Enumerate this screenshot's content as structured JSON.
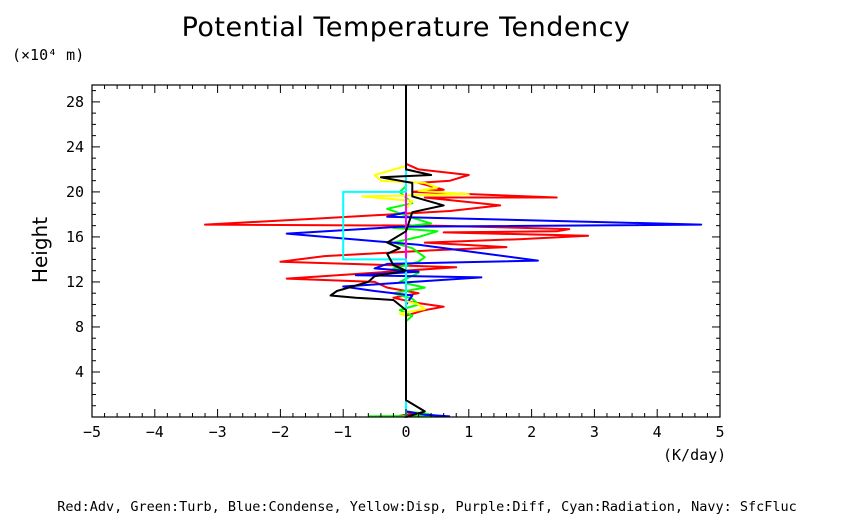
{
  "chart_data": {
    "type": "line",
    "title": "Potential Temperature Tendency",
    "xlabel": "(K/day)",
    "ylabel": "Height",
    "y_unit_label": "(×10⁴ m)",
    "xlim": [
      -5,
      5
    ],
    "ylim": [
      0,
      29.5
    ],
    "x_ticks": [
      "−5",
      "−4",
      "−3",
      "−2",
      "−1",
      "0",
      "1",
      "2",
      "3",
      "4",
      "5"
    ],
    "x_tick_values": [
      -5,
      -4,
      -3,
      -2,
      -1,
      0,
      1,
      2,
      3,
      4,
      5
    ],
    "y_ticks": [
      "4",
      "8",
      "12",
      "16",
      "20",
      "24",
      "28"
    ],
    "y_tick_values": [
      4,
      8,
      12,
      16,
      20,
      24,
      28
    ],
    "grid": false,
    "caption": "Red:Adv, Green:Turb, Blue:Condense, Yellow:Disp, Purple:Diff, Cyan:Radiation, Navy: SfcFluc",
    "series": [
      {
        "color": "#ff0000",
        "points": [
          [
            0,
            29
          ],
          [
            0,
            22.5
          ],
          [
            0.2,
            22
          ],
          [
            1.0,
            21.5
          ],
          [
            0.7,
            21
          ],
          [
            0.2,
            20.8
          ],
          [
            0.6,
            20.2
          ],
          [
            0.1,
            20
          ],
          [
            2.4,
            19.5
          ],
          [
            0.3,
            19.5
          ],
          [
            1.5,
            18.8
          ],
          [
            0.7,
            18.3
          ],
          [
            -1.5,
            17.6
          ],
          [
            -3.2,
            17.1
          ],
          [
            0.5,
            17.0
          ],
          [
            2.6,
            16.7
          ],
          [
            2.4,
            16.5
          ],
          [
            0.6,
            16.4
          ],
          [
            2.9,
            16.1
          ],
          [
            1.8,
            15.8
          ],
          [
            0.3,
            15.5
          ],
          [
            1.6,
            15.1
          ],
          [
            0.4,
            14.8
          ],
          [
            -1.3,
            14.3
          ],
          [
            -2.0,
            13.8
          ],
          [
            0.8,
            13.3
          ],
          [
            -1.9,
            12.3
          ],
          [
            -0.5,
            12.0
          ],
          [
            -0.3,
            11.5
          ],
          [
            0.2,
            11.0
          ],
          [
            -0.2,
            10.6
          ],
          [
            0.1,
            10.2
          ],
          [
            0.6,
            9.8
          ],
          [
            0.3,
            9.5
          ],
          [
            0,
            9.0
          ],
          [
            0,
            0.5
          ],
          [
            0.1,
            0.3
          ],
          [
            -0.1,
            0.1
          ],
          [
            0,
            0
          ]
        ]
      },
      {
        "color": "#00ff00",
        "points": [
          [
            0,
            29
          ],
          [
            0,
            20.5
          ],
          [
            -0.1,
            20.0
          ],
          [
            0.1,
            19.0
          ],
          [
            -0.3,
            18.5
          ],
          [
            0.1,
            17.7
          ],
          [
            0.4,
            17.2
          ],
          [
            -0.2,
            16.8
          ],
          [
            0.5,
            16.5
          ],
          [
            0.2,
            16.0
          ],
          [
            -0.2,
            15.5
          ],
          [
            0.1,
            15.0
          ],
          [
            0.3,
            14.2
          ],
          [
            0.2,
            13.8
          ],
          [
            -0.2,
            13.2
          ],
          [
            0.2,
            12.8
          ],
          [
            -0.1,
            12.0
          ],
          [
            0.3,
            11.5
          ],
          [
            -0.2,
            11.0
          ],
          [
            0.1,
            10.5
          ],
          [
            0.2,
            10.0
          ],
          [
            -0.1,
            9.5
          ],
          [
            0.1,
            9.0
          ],
          [
            0,
            8.5
          ],
          [
            0,
            0.5
          ],
          [
            0.3,
            0.3
          ],
          [
            0.5,
            0.1
          ],
          [
            -0.6,
            0.05
          ]
        ]
      },
      {
        "color": "#0000ff",
        "points": [
          [
            0,
            29
          ],
          [
            0,
            18.2
          ],
          [
            -0.3,
            17.8
          ],
          [
            4.7,
            17.1
          ],
          [
            -0.1,
            16.9
          ],
          [
            -1.9,
            16.3
          ],
          [
            0.2,
            15.3
          ],
          [
            2.1,
            13.9
          ],
          [
            -0.3,
            13.6
          ],
          [
            -0.5,
            13.2
          ],
          [
            0.2,
            12.9
          ],
          [
            -0.8,
            12.6
          ],
          [
            1.2,
            12.4
          ],
          [
            -1.0,
            11.6
          ],
          [
            -0.5,
            11.2
          ],
          [
            0.1,
            10.8
          ],
          [
            0,
            10.0
          ],
          [
            0,
            0.5
          ],
          [
            0.3,
            0.2
          ],
          [
            0.7,
            0.05
          ]
        ]
      },
      {
        "color": "#ffff00",
        "points": [
          [
            0,
            29
          ],
          [
            0,
            22.3
          ],
          [
            -0.5,
            21.5
          ],
          [
            -0.4,
            21.0
          ],
          [
            0.3,
            20.8
          ],
          [
            0.5,
            20.4
          ],
          [
            0.2,
            20.1
          ],
          [
            1.0,
            19.8
          ],
          [
            -0.7,
            19.6
          ],
          [
            0.1,
            19.2
          ],
          [
            0,
            18.5
          ],
          [
            0,
            10.3
          ],
          [
            0.2,
            10.0
          ],
          [
            0.3,
            9.6
          ],
          [
            -0.1,
            9.2
          ],
          [
            0,
            9.0
          ],
          [
            0,
            0
          ]
        ]
      },
      {
        "color": "#ff00ff",
        "points": [
          [
            0,
            29.5
          ],
          [
            0,
            0
          ]
        ]
      },
      {
        "color": "#00ffff",
        "points": [
          [
            0,
            29
          ],
          [
            0,
            20.0
          ],
          [
            -1.0,
            20.0
          ],
          [
            -1.0,
            14.0
          ],
          [
            0,
            14.0
          ],
          [
            0,
            0
          ]
        ]
      },
      {
        "color": "#000000",
        "points": [
          [
            0,
            29.5
          ],
          [
            0,
            22.0
          ],
          [
            0.4,
            21.5
          ],
          [
            -0.4,
            21.3
          ],
          [
            0.1,
            20.8
          ],
          [
            0.1,
            19.6
          ],
          [
            0.6,
            18.8
          ],
          [
            0.1,
            18.2
          ],
          [
            0,
            16.5
          ],
          [
            -0.3,
            15.5
          ],
          [
            -0.1,
            15.0
          ],
          [
            -0.3,
            14.5
          ],
          [
            -0.2,
            13.5
          ],
          [
            0,
            13.0
          ],
          [
            -0.5,
            12.5
          ],
          [
            -0.6,
            12.0
          ],
          [
            -1.1,
            11.2
          ],
          [
            -1.2,
            10.8
          ],
          [
            -0.8,
            10.6
          ],
          [
            -0.2,
            10.4
          ],
          [
            0,
            9.5
          ],
          [
            0,
            1.5
          ],
          [
            0.3,
            0.5
          ],
          [
            0,
            0
          ]
        ]
      }
    ]
  }
}
